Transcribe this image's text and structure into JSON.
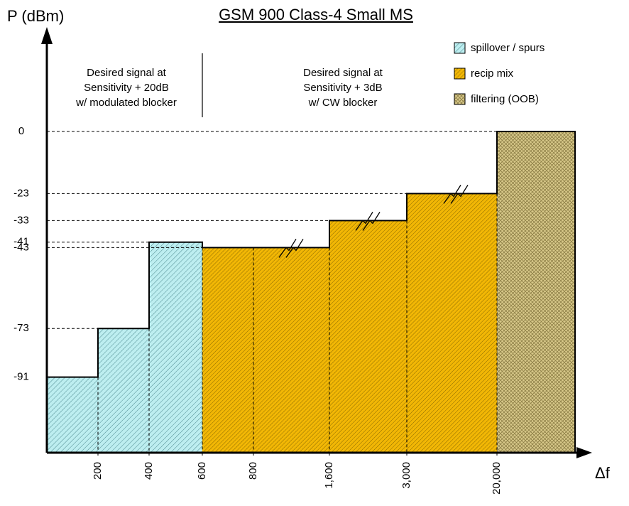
{
  "chart_data": {
    "type": "step",
    "title": "GSM 900 Class-4 Small MS",
    "y_label": "P (dBm)",
    "x_label": "Δf",
    "xticks": [
      200,
      400,
      600,
      800,
      {
        "value": 1600,
        "label": "1,600"
      },
      {
        "value": 3000,
        "label": "3,000"
      },
      {
        "value": 20000,
        "label": "20,000"
      }
    ],
    "series": [
      {
        "name": "spillover / spurs",
        "color": "#bdeef0",
        "values": [
          -91,
          -73,
          -41,
          null,
          null,
          null,
          null,
          null
        ]
      },
      {
        "name": "recip mix",
        "color": "#f2b705",
        "values": [
          null,
          null,
          null,
          -43,
          -43,
          -33,
          -23,
          null
        ]
      },
      {
        "name": "filtering (OOB)",
        "color": "#d8c98a",
        "values": [
          null,
          null,
          null,
          null,
          null,
          null,
          null,
          0
        ]
      }
    ],
    "ylim": [
      -119,
      0
    ],
    "yticks": [
      0,
      -23,
      -33,
      -41,
      -43,
      -73,
      -91
    ],
    "annotations": [
      [
        "Desired signal at",
        "Sensitivity + 20dB",
        "w/ modulated blocker"
      ],
      [
        "Desired signal at",
        "Sensitivity + 3dB",
        "w/ CW blocker"
      ]
    ]
  }
}
